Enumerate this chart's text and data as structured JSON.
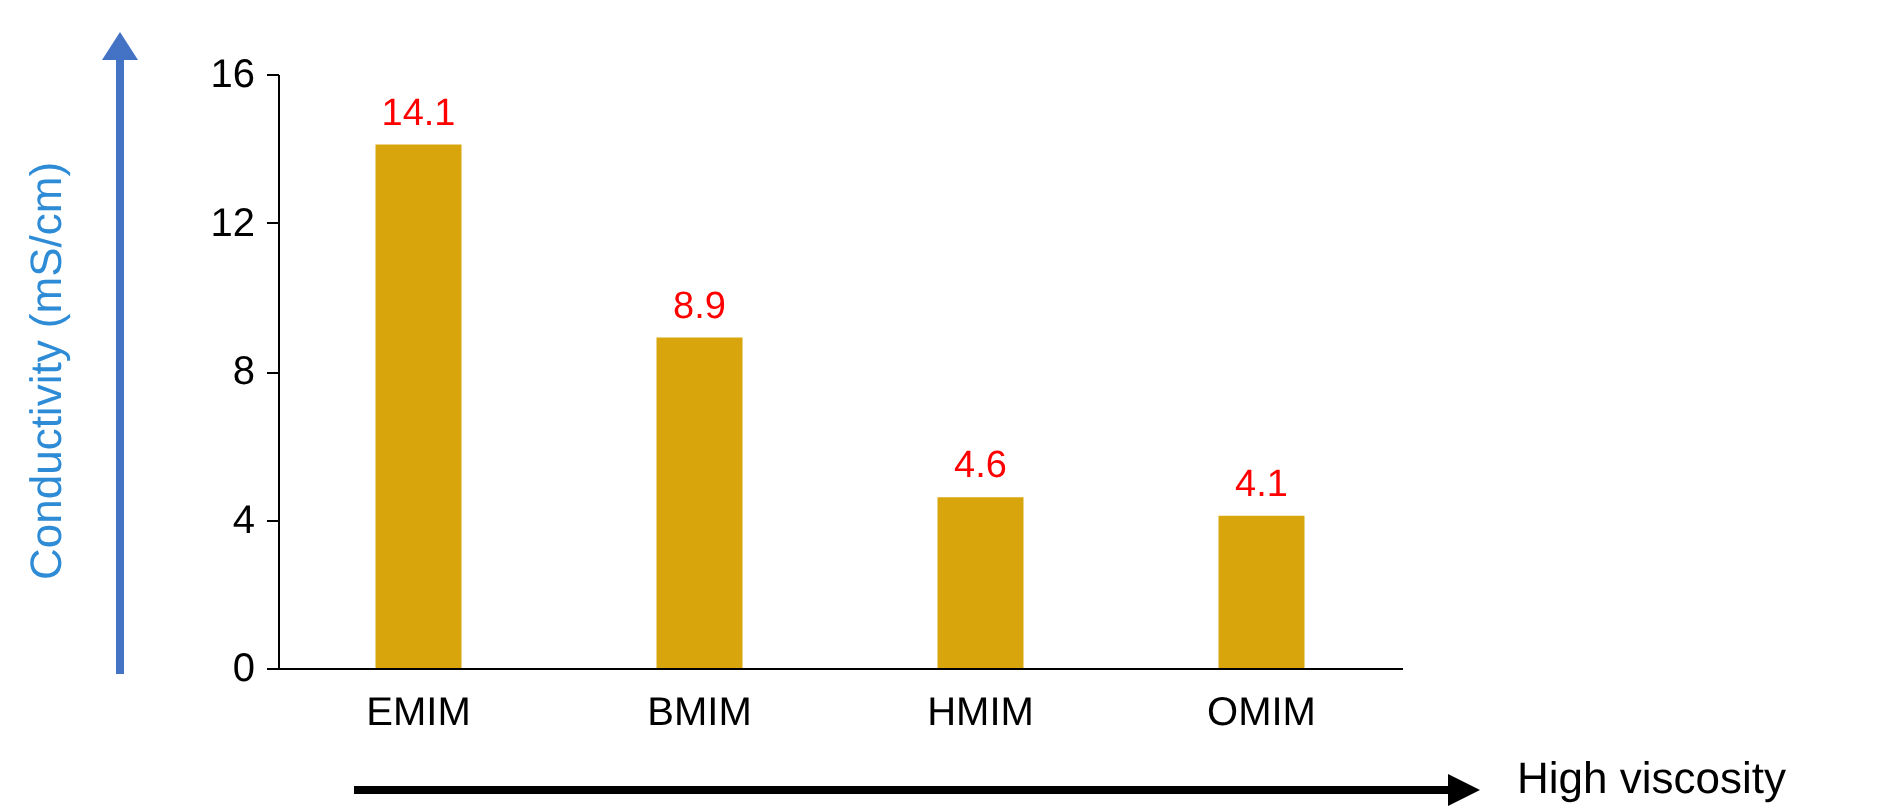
{
  "chart_data": {
    "type": "bar",
    "xlabel": "High viscosity",
    "ylabel": "Conductivity (mS/cm)",
    "categories": [
      "EMIM",
      "BMIM",
      "HMIM",
      "OMIM"
    ],
    "values": [
      14.1,
      8.9,
      4.6,
      4.1
    ],
    "color": "#d9a50c",
    "ylim": [
      0,
      16
    ],
    "yticks": [
      0,
      4,
      8,
      12,
      16
    ],
    "grid": false,
    "data_labels": true
  }
}
